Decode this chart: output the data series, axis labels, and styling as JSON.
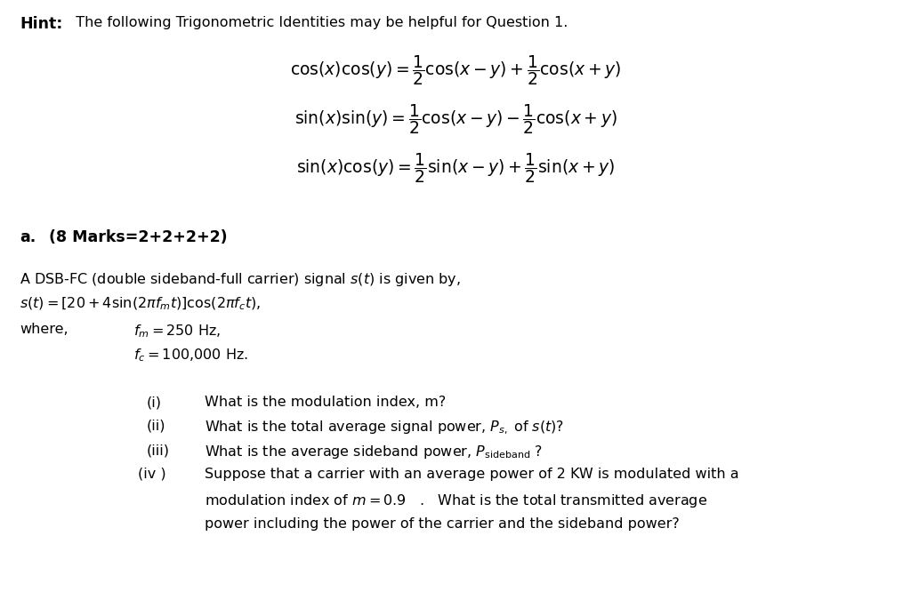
{
  "bg_color": "#ffffff",
  "hint_bold": "Hint:",
  "hint_text": "  The following Trigonometric Identities may be helpful for Question 1.",
  "eq1": "$\\cos(x)\\cos(y) = \\dfrac{1}{2}\\cos(x-y)+\\dfrac{1}{2}\\cos(x+y)$",
  "eq2": "$\\sin(x)\\sin(y) = \\dfrac{1}{2}\\cos(x-y)-\\dfrac{1}{2}\\cos(x+y)$",
  "eq3": "$\\sin(x)\\cos(y) = \\dfrac{1}{2}\\sin(x-y)+\\dfrac{1}{2}\\sin(x+y)$",
  "part_a_label": "a.",
  "part_a_text": "(8 Marks=2+2+2+2)",
  "dsb_line1": "A DSB-FC (double sideband-full carrier) signal $s(t)$ is given by,",
  "dsb_line2": "$s(t) = \\left[20 + 4\\sin(2\\pi f_m t)\\right]\\cos(2\\pi f_c t),$",
  "where_text": "where,",
  "fm_text": "$f_m = 250$ Hz,",
  "fc_text": "$f_c = 100{,}000$ Hz.",
  "q_i": "(i)",
  "q_i_text": "What is the modulation index, m?",
  "q_ii": "(ii)",
  "q_ii_text": "What is the total average signal power, $P_{s,}$ of $s(t)$?",
  "q_iii": "(iii)",
  "q_iii_text": "What is the average sideband power, $P_{\\mathrm{sideband}}$ ?",
  "q_iv": "(iv )",
  "q_iv_text1": "Suppose that a carrier with an average power of 2 KW is modulated with a",
  "q_iv_text2": "modulation index of $m = 0.9$   .   What is the total transmitted average",
  "q_iv_text3": "power including the power of the carrier and the sideband power?"
}
